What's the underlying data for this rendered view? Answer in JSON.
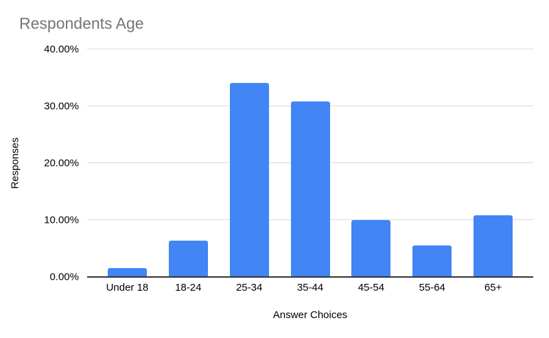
{
  "colors": {
    "background": "#ffffff",
    "bar": "#4285f4",
    "title": "#757575",
    "tick": "#000000",
    "grid": "#d9d9d9",
    "axis": "#333333"
  },
  "chart_data": {
    "type": "bar",
    "title": "Respondents Age",
    "xlabel": "Answer Choices",
    "ylabel": "Responses",
    "categories": [
      "Under 18",
      "18-24",
      "25-34",
      "35-44",
      "45-54",
      "55-64",
      "65+"
    ],
    "values": [
      1.6,
      6.4,
      34.1,
      30.8,
      10.0,
      5.6,
      10.8
    ],
    "ylim": [
      0,
      40
    ],
    "ytick_values": [
      0,
      10,
      20,
      30,
      40
    ],
    "ytick_labels": [
      "0.00%",
      "10.00%",
      "20.00%",
      "30.00%",
      "40.00%"
    ],
    "grid": true,
    "legend": false
  }
}
